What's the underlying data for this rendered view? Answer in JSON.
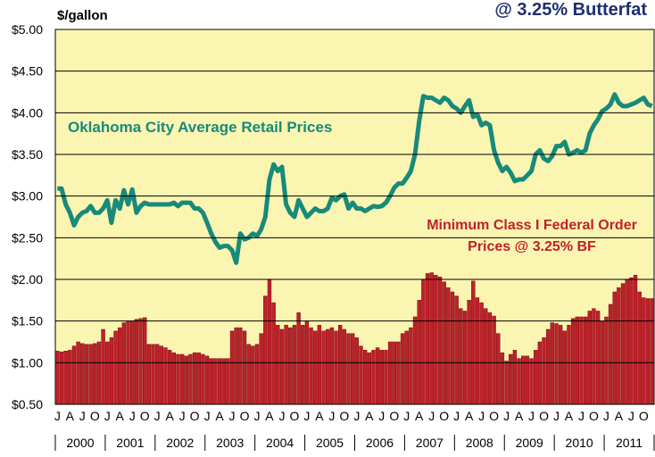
{
  "chart_data": {
    "type": "bar_line",
    "title": "@ 3.25% Butterfat",
    "y_label": "$/gallon",
    "categories": [
      "J",
      null,
      null,
      "A",
      null,
      null,
      "J",
      null,
      null,
      "O",
      null,
      null,
      "J",
      null,
      null,
      "A",
      null,
      null,
      "J",
      null,
      null,
      "O",
      null,
      null,
      "J",
      null,
      null,
      "A",
      null,
      null,
      "J",
      null,
      null,
      "O",
      null,
      null,
      "J",
      null,
      null,
      "A",
      null,
      null,
      "J",
      null,
      null,
      "O",
      null,
      null,
      "J",
      null,
      null,
      "A",
      null,
      null,
      "J",
      null,
      null,
      "O",
      null,
      null,
      "J",
      null,
      null,
      "A",
      null,
      null,
      "J",
      null,
      null,
      "O",
      null,
      null,
      "J",
      null,
      null,
      "A",
      null,
      null,
      "J",
      null,
      null,
      "O",
      null,
      null,
      "J",
      null,
      null,
      "A",
      null,
      null,
      "J",
      null,
      null,
      "O",
      null,
      null,
      "J",
      null,
      null,
      "A",
      null,
      null,
      "J",
      null,
      null,
      "O",
      null,
      null,
      "J",
      null,
      null,
      "A",
      null,
      null,
      "J",
      null,
      null,
      "O",
      null,
      null,
      "J",
      null,
      null,
      "A",
      null,
      null,
      "J",
      null,
      null,
      "O",
      null,
      null,
      "J",
      null,
      null,
      "A",
      null,
      null,
      "J",
      null,
      null,
      "O",
      null,
      null
    ],
    "years": [
      "2000",
      "2001",
      "2002",
      "2003",
      "2004",
      "2005",
      "2006",
      "2007",
      "2008",
      "2009",
      "2010",
      "2011"
    ],
    "ylim": [
      0.5,
      5
    ],
    "yticks": [
      {
        "value": 0.5,
        "label": "$0.50"
      },
      {
        "value": 1,
        "label": "$1.00"
      },
      {
        "value": 1.5,
        "label": "$1.50"
      },
      {
        "value": 2,
        "label": "$2.00"
      },
      {
        "value": 2.5,
        "label": "$2.50"
      },
      {
        "value": 3,
        "label": "$3.00"
      },
      {
        "value": 3.5,
        "label": "$3.50"
      },
      {
        "value": 4,
        "label": "$4.00"
      },
      {
        "value": 4.5,
        "label": "$4.50"
      },
      {
        "value": 5,
        "label": "$5.00"
      }
    ],
    "grid": true,
    "series": [
      {
        "name": "Oklahoma City Average Retail Prices",
        "type": "line",
        "color": "#178a7a",
        "values": [
          3.09,
          3.09,
          2.9,
          2.8,
          2.65,
          2.75,
          2.8,
          2.82,
          2.88,
          2.8,
          2.8,
          2.85,
          2.95,
          2.68,
          2.95,
          2.85,
          3.07,
          2.9,
          3.08,
          2.8,
          2.88,
          2.92,
          2.9,
          2.9,
          2.9,
          2.9,
          2.9,
          2.9,
          2.92,
          2.88,
          2.92,
          2.92,
          2.92,
          2.85,
          2.85,
          2.8,
          2.68,
          2.55,
          2.45,
          2.38,
          2.4,
          2.4,
          2.35,
          2.2,
          2.55,
          2.48,
          2.5,
          2.55,
          2.52,
          2.6,
          2.75,
          3.2,
          3.38,
          3.3,
          3.35,
          2.9,
          2.8,
          2.75,
          2.95,
          2.85,
          2.75,
          2.8,
          2.85,
          2.82,
          2.82,
          2.85,
          2.98,
          2.95,
          3.0,
          3.02,
          2.85,
          2.92,
          2.85,
          2.85,
          2.82,
          2.85,
          2.88,
          2.87,
          2.88,
          2.92,
          3.0,
          3.1,
          3.15,
          3.15,
          3.22,
          3.3,
          3.5,
          3.9,
          4.2,
          4.18,
          4.18,
          4.15,
          4.12,
          4.18,
          4.15,
          4.08,
          4.05,
          4.0,
          4.08,
          4.15,
          3.95,
          3.98,
          3.85,
          3.88,
          3.85,
          3.55,
          3.4,
          3.3,
          3.35,
          3.28,
          3.18,
          3.2,
          3.2,
          3.25,
          3.3,
          3.5,
          3.55,
          3.45,
          3.42,
          3.48,
          3.6,
          3.6,
          3.65,
          3.5,
          3.52,
          3.55,
          3.52,
          3.55,
          3.75,
          3.85,
          3.92,
          4.02,
          4.05,
          4.1,
          4.22,
          4.12,
          4.08,
          4.08,
          4.1,
          4.12,
          4.15,
          4.18,
          4.1,
          4.08
        ]
      },
      {
        "name": "Minimum Class I Federal Order Prices @ 3.25% BF",
        "type": "bar",
        "color": "#c0202a",
        "values": [
          1.14,
          1.13,
          1.14,
          1.15,
          1.2,
          1.25,
          1.23,
          1.22,
          1.22,
          1.23,
          1.25,
          1.4,
          1.25,
          1.3,
          1.38,
          1.42,
          1.48,
          1.5,
          1.5,
          1.52,
          1.53,
          1.54,
          1.22,
          1.22,
          1.22,
          1.2,
          1.18,
          1.15,
          1.12,
          1.1,
          1.1,
          1.08,
          1.1,
          1.12,
          1.12,
          1.1,
          1.08,
          1.05,
          1.05,
          1.05,
          1.05,
          1.05,
          1.38,
          1.42,
          1.42,
          1.38,
          1.22,
          1.2,
          1.22,
          1.35,
          1.8,
          2.0,
          1.72,
          1.45,
          1.4,
          1.45,
          1.42,
          1.45,
          1.6,
          1.45,
          1.5,
          1.42,
          1.38,
          1.45,
          1.38,
          1.4,
          1.42,
          1.38,
          1.45,
          1.4,
          1.35,
          1.35,
          1.3,
          1.2,
          1.15,
          1.12,
          1.15,
          1.18,
          1.15,
          1.15,
          1.25,
          1.25,
          1.25,
          1.35,
          1.38,
          1.42,
          1.55,
          1.75,
          2.0,
          2.07,
          2.08,
          2.05,
          2.03,
          1.97,
          1.9,
          1.85,
          1.8,
          1.65,
          1.62,
          1.75,
          1.98,
          1.78,
          1.72,
          1.65,
          1.6,
          1.56,
          1.35,
          1.12,
          1.02,
          1.1,
          1.15,
          1.05,
          1.08,
          1.08,
          1.05,
          1.15,
          1.25,
          1.3,
          1.4,
          1.48,
          1.47,
          1.45,
          1.38,
          1.45,
          1.53,
          1.55,
          1.55,
          1.55,
          1.62,
          1.65,
          1.62,
          1.5,
          1.55,
          1.7,
          1.85,
          1.9,
          1.95,
          2.0,
          2.02,
          2.05,
          1.85,
          1.78,
          1.77,
          1.77
        ]
      }
    ]
  }
}
